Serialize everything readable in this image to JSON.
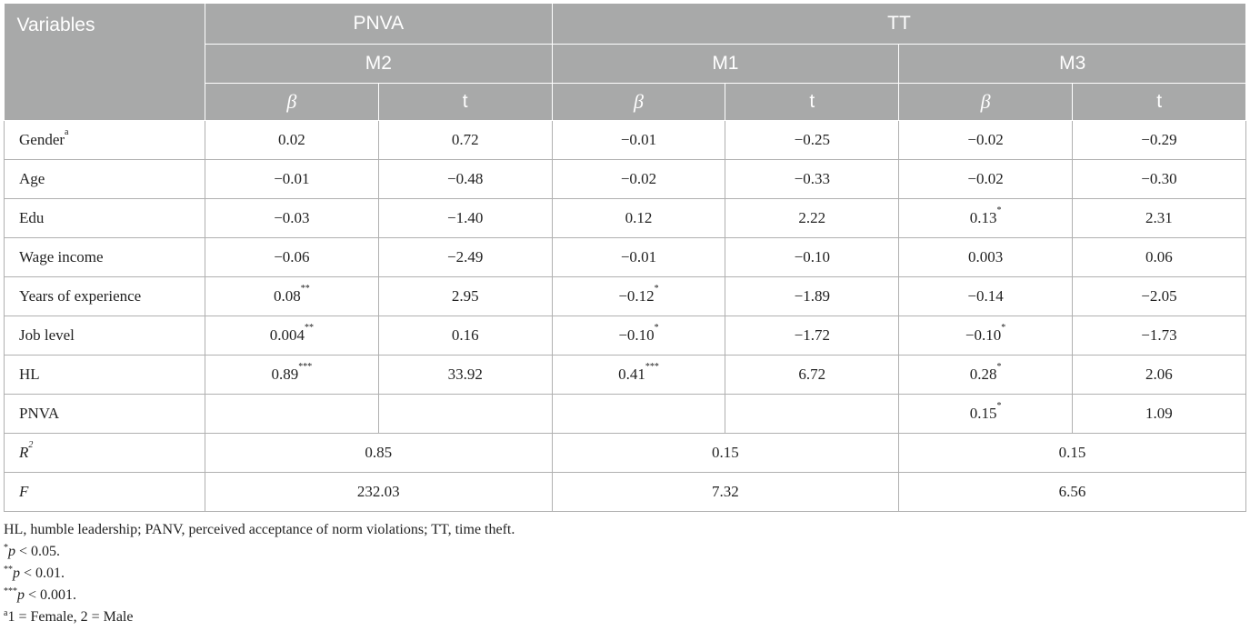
{
  "header": {
    "variables": "Variables",
    "group_pnva": "PNVA",
    "group_tt": "TT",
    "model_m2": "M2",
    "model_m1": "M1",
    "model_m3": "M3",
    "beta": "β",
    "t": "t"
  },
  "rows": [
    {
      "label": "Gender",
      "sup": "a",
      "m2_beta": "0.02",
      "m2_beta_sig": "",
      "m2_t": "0.72",
      "m1_beta": "−0.01",
      "m1_beta_sig": "",
      "m1_t": "−0.25",
      "m3_beta": "−0.02",
      "m3_beta_sig": "",
      "m3_t": "−0.29"
    },
    {
      "label": "Age",
      "sup": "",
      "m2_beta": "−0.01",
      "m2_beta_sig": "",
      "m2_t": "−0.48",
      "m1_beta": "−0.02",
      "m1_beta_sig": "",
      "m1_t": "−0.33",
      "m3_beta": "−0.02",
      "m3_beta_sig": "",
      "m3_t": "−0.30"
    },
    {
      "label": "Edu",
      "sup": "",
      "m2_beta": "−0.03",
      "m2_beta_sig": "",
      "m2_t": "−1.40",
      "m1_beta": "0.12",
      "m1_beta_sig": "",
      "m1_t": "2.22",
      "m3_beta": "0.13",
      "m3_beta_sig": "*",
      "m3_t": "2.31"
    },
    {
      "label": "Wage income",
      "sup": "",
      "m2_beta": "−0.06",
      "m2_beta_sig": "",
      "m2_t": "−2.49",
      "m1_beta": "−0.01",
      "m1_beta_sig": "",
      "m1_t": "−0.10",
      "m3_beta": "0.003",
      "m3_beta_sig": "",
      "m3_t": "0.06"
    },
    {
      "label": "Years of experience",
      "sup": "",
      "m2_beta": "0.08",
      "m2_beta_sig": "**",
      "m2_t": "2.95",
      "m1_beta": "−0.12",
      "m1_beta_sig": "*",
      "m1_t": "−1.89",
      "m3_beta": "−0.14",
      "m3_beta_sig": "",
      "m3_t": "−2.05"
    },
    {
      "label": "Job level",
      "sup": "",
      "m2_beta": "0.004",
      "m2_beta_sig": "**",
      "m2_t": "0.16",
      "m1_beta": "−0.10",
      "m1_beta_sig": "*",
      "m1_t": "−1.72",
      "m3_beta": "−0.10",
      "m3_beta_sig": "*",
      "m3_t": "−1.73"
    },
    {
      "label": "HL",
      "sup": "",
      "m2_beta": "0.89",
      "m2_beta_sig": "***",
      "m2_t": "33.92",
      "m1_beta": "0.41",
      "m1_beta_sig": "***",
      "m1_t": "6.72",
      "m3_beta": "0.28",
      "m3_beta_sig": "*",
      "m3_t": "2.06"
    },
    {
      "label": "PNVA",
      "sup": "",
      "m2_beta": "",
      "m2_beta_sig": "",
      "m2_t": "",
      "m1_beta": "",
      "m1_beta_sig": "",
      "m1_t": "",
      "m3_beta": "0.15",
      "m3_beta_sig": "*",
      "m3_t": "1.09"
    }
  ],
  "summary": {
    "r2_label": "R",
    "r2_sup": "2",
    "r2_m2": "0.85",
    "r2_m1": "0.15",
    "r2_m3": "0.15",
    "f_label": "F",
    "f_m2": "232.03",
    "f_m1": "7.32",
    "f_m3": "6.56"
  },
  "notes": {
    "abbrev": "HL, humble leadership; PANV, perceived acceptance of norm violations; TT, time theft.",
    "n1_mark": "*",
    "n1_p": "p",
    "n1_rest": " < 0.05.",
    "n2_mark": "**",
    "n2_p": "p",
    "n2_rest": " < 0.01.",
    "n3_mark": "***",
    "n3_p": "p",
    "n3_rest": " < 0.001.",
    "n4_mark": "a",
    "n4_rest": "1 = Female, 2 = Male"
  }
}
